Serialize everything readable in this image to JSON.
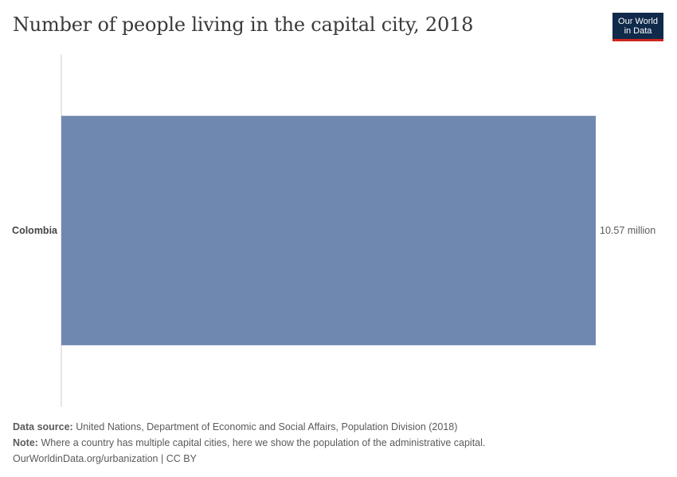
{
  "header": {
    "title": "Number of people living in the capital city, 2018",
    "logo_line1": "Our World",
    "logo_line2": "in Data"
  },
  "chart_data": {
    "type": "bar",
    "orientation": "horizontal",
    "categories": [
      "Colombia"
    ],
    "values": [
      10570000
    ],
    "value_labels": [
      "10.57 million"
    ],
    "title": "Number of people living in the capital city, 2018",
    "xlabel": "",
    "ylabel": "",
    "xlim": [
      0,
      10570000
    ],
    "grid": false,
    "bar_color": "#6f88b0"
  },
  "footer": {
    "source_label": "Data source:",
    "source_text": "United Nations, Department of Economic and Social Affairs, Population Division (2018)",
    "note_label": "Note:",
    "note_text": "Where a country has multiple capital cities, here we show the population of the administrative capital.",
    "url_text": "OurWorldinData.org/urbanization | CC BY"
  },
  "colors": {
    "bar": "#6f88b0",
    "logo_bg": "#0f2a4a",
    "logo_accent": "#ce261e"
  }
}
